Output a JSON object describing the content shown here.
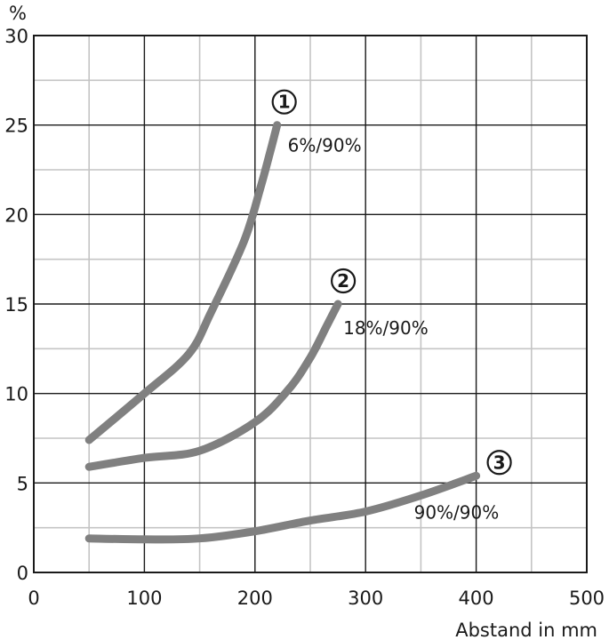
{
  "chart_data": {
    "type": "line",
    "title": "",
    "ylabel": "%",
    "xlabel": "Abstand in mm",
    "xlim": [
      0,
      500
    ],
    "ylim": [
      0,
      30
    ],
    "xticks": [
      0,
      100,
      200,
      300,
      400,
      500
    ],
    "yticks": [
      0,
      5,
      10,
      15,
      20,
      25,
      30
    ],
    "grid": true,
    "series": [
      {
        "marker": "1",
        "label": "6%/90%",
        "color": "#808080",
        "x": [
          50,
          100,
          140,
          160,
          190,
          205,
          215,
          220
        ],
        "y": [
          7.4,
          10.0,
          12.2,
          14.5,
          18.5,
          21.5,
          23.8,
          25.0
        ]
      },
      {
        "marker": "2",
        "label": "18%/90%",
        "color": "#808080",
        "x": [
          50,
          100,
          150,
          200,
          230,
          250,
          265,
          275
        ],
        "y": [
          5.9,
          6.4,
          6.8,
          8.4,
          10.2,
          12.0,
          13.8,
          15.0
        ]
      },
      {
        "marker": "3",
        "label": "90%/90%",
        "color": "#808080",
        "x": [
          50,
          100,
          150,
          200,
          250,
          300,
          350,
          400
        ],
        "y": [
          1.9,
          1.85,
          1.9,
          2.3,
          2.9,
          3.4,
          4.3,
          5.4
        ]
      }
    ]
  }
}
